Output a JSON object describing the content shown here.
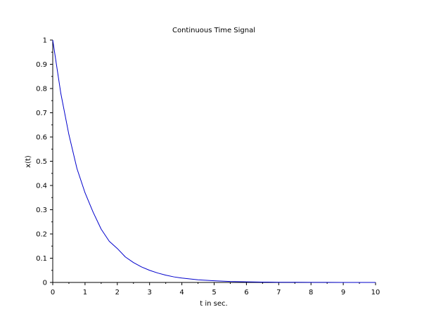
{
  "chart_data": {
    "type": "line",
    "title": "Continuous Time Signal",
    "xlabel": "t in sec.",
    "ylabel": "x(t)",
    "xlim": [
      0,
      10
    ],
    "ylim": [
      0,
      1
    ],
    "grid": false,
    "x_ticks": [
      "0",
      "1",
      "2",
      "3",
      "4",
      "5",
      "6",
      "7",
      "8",
      "9",
      "10"
    ],
    "y_ticks": [
      "0",
      "0.1",
      "0.2",
      "0.3",
      "0.4",
      "0.5",
      "0.6",
      "0.7",
      "0.8",
      "0.9",
      "1"
    ],
    "series": [
      {
        "color": "#0000cc",
        "x": [
          0,
          0.25,
          0.5,
          0.75,
          1,
          1.25,
          1.5,
          1.75,
          2,
          2.25,
          2.5,
          2.75,
          3,
          3.25,
          3.5,
          3.75,
          4,
          4.5,
          5,
          5.5,
          6,
          6.5,
          7,
          7.5,
          8,
          8.5,
          9,
          9.5,
          10
        ],
        "y": [
          1,
          0.78,
          0.61,
          0.47,
          0.37,
          0.29,
          0.22,
          0.17,
          0.14,
          0.105,
          0.082,
          0.064,
          0.05,
          0.039,
          0.03,
          0.023,
          0.018,
          0.011,
          0.007,
          0.004,
          0.0025,
          0.0015,
          0.0009,
          0.0006,
          0.0003,
          0.0002,
          0.0001,
          0.0001,
          5e-05
        ]
      }
    ]
  }
}
